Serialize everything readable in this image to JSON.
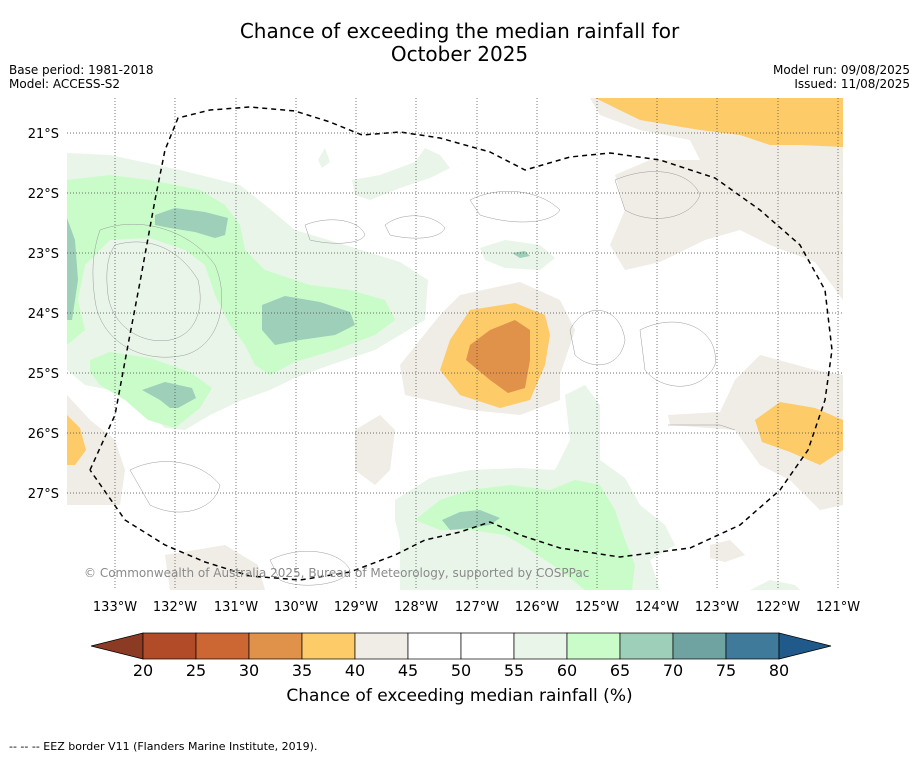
{
  "title_line1": "Chance of exceeding the median rainfall for",
  "title_line2": "October 2025",
  "base_period": "Base period: 1981-2018",
  "model": "Model: ACCESS-S2",
  "model_run": "Model run: 09/08/2025",
  "issued": "Issued: 11/08/2025",
  "copyright": "© Commonwealth of Australia 2025, Bureau of Meteorology, supported by COSPPac",
  "lon_labels": [
    "133°W",
    "132°W",
    "131°W",
    "130°W",
    "129°W",
    "128°W",
    "127°W",
    "126°W",
    "125°W",
    "124°W",
    "123°W",
    "122°W",
    "121°W"
  ],
  "lat_labels": [
    "21°S",
    "22°S",
    "23°S",
    "24°S",
    "25°S",
    "26°S",
    "27°S"
  ],
  "colorbar": {
    "label": "Chance of exceeding median rainfall (%)",
    "ticks": [
      "20",
      "25",
      "30",
      "35",
      "40",
      "45",
      "50",
      "55",
      "60",
      "65",
      "70",
      "75",
      "80"
    ],
    "colors": [
      "#b14b28",
      "#cc6733",
      "#e0924b",
      "#fdcb68",
      "#f0ece6",
      "#ffffff",
      "#ffffff",
      "#e9f5e9",
      "#c9fcc9",
      "#9dcfb9",
      "#6fa3a1",
      "#3f7a9a"
    ],
    "under_color": "#8b3a23",
    "over_color": "#1f5a8a"
  },
  "footer": "--  --  -- EEZ border V11 (Flanders Marine Institute, 2019).",
  "map_colors": {
    "c40_45": "#f0ece6",
    "c35_40": "#fdcb68",
    "c30_35": "#e0924b",
    "c55_60": "#e9f5e9",
    "c60_65": "#c9fcc9",
    "c65_70": "#9dcfb9"
  }
}
